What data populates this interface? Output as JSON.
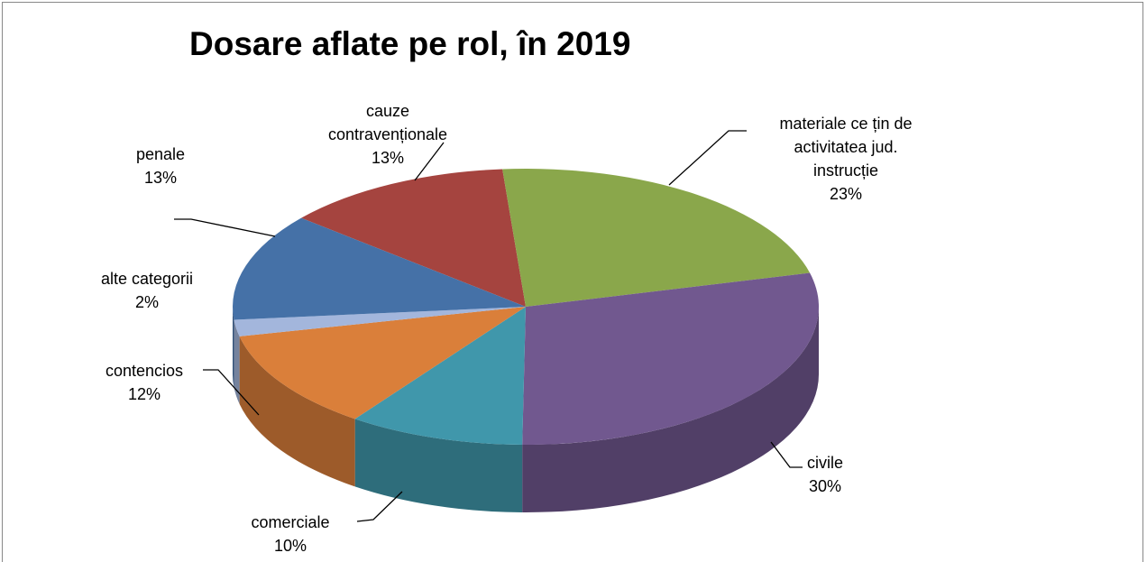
{
  "chart_data": {
    "type": "pie",
    "title": "Dosare aflate pe rol, în 2019",
    "categories": [
      "cauze contravenționale",
      "materiale ce țin de activitatea jud. instrucție",
      "civile",
      "comerciale",
      "contencios",
      "alte categorii",
      "penale"
    ],
    "values": [
      13,
      23,
      30,
      10,
      12,
      2,
      13
    ],
    "value_labels": [
      "13%",
      "23%",
      "30%",
      "10%",
      "12%",
      "2%",
      "13%"
    ],
    "colors": [
      "#a5443f",
      "#8aa74b",
      "#71588f",
      "#4097ab",
      "#da7f3a",
      "#a3b6dc",
      "#4571a7"
    ]
  }
}
